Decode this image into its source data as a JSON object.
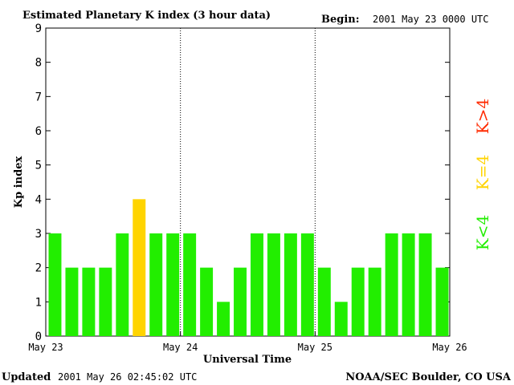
{
  "header": {
    "title": "Estimated Planetary K index (3 hour data)",
    "begin_label": "Begin:",
    "begin_value": "2001 May 23 0000 UTC"
  },
  "footer": {
    "updated_label": "Updated",
    "updated_value": "2001 May 26 02:45:02 UTC",
    "source": "NOAA/SEC Boulder, CO USA"
  },
  "legend": {
    "items": [
      {
        "label": "K>4",
        "color": "#ff2a00"
      },
      {
        "label": "K=4",
        "color": "#ffd400"
      },
      {
        "label": "K<4",
        "color": "#22ee00"
      }
    ]
  },
  "colors": {
    "below4": "#22ee00",
    "equal4": "#ffd400",
    "above4": "#ff2a00"
  },
  "chart_data": {
    "type": "bar",
    "title": "Estimated Planetary K index (3 hour data)",
    "xlabel": "Universal Time",
    "ylabel": "Kp index",
    "ylim": [
      0,
      9
    ],
    "yticks": [
      "0",
      "1",
      "2",
      "3",
      "4",
      "5",
      "6",
      "7",
      "8",
      "9"
    ],
    "xticks": [
      "May 23",
      "May 24",
      "May 25",
      "May 26"
    ],
    "day_dividers": [
      "May 24",
      "May 25"
    ],
    "grid": false,
    "legend_position": "right",
    "values": [
      3,
      2,
      2,
      2,
      3,
      4,
      3,
      3,
      3,
      2,
      1,
      2,
      3,
      3,
      3,
      3,
      2,
      1,
      2,
      2,
      3,
      3,
      3,
      2
    ]
  }
}
